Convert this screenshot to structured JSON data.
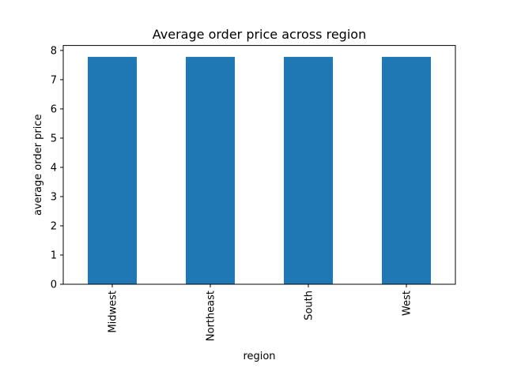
{
  "chart_data": {
    "type": "bar",
    "title": "Average order price across region",
    "xlabel": "region",
    "ylabel": "average order price",
    "categories": [
      "Midwest",
      "Northeast",
      "South",
      "West"
    ],
    "values": [
      7.78,
      7.78,
      7.78,
      7.78
    ],
    "ylim": [
      0,
      8.17
    ],
    "yticks": [
      0,
      1,
      2,
      3,
      4,
      5,
      6,
      7,
      8
    ],
    "grid": false,
    "legend": "none",
    "bar_color": "#1f77b4",
    "xtick_rotation": "vertical"
  }
}
